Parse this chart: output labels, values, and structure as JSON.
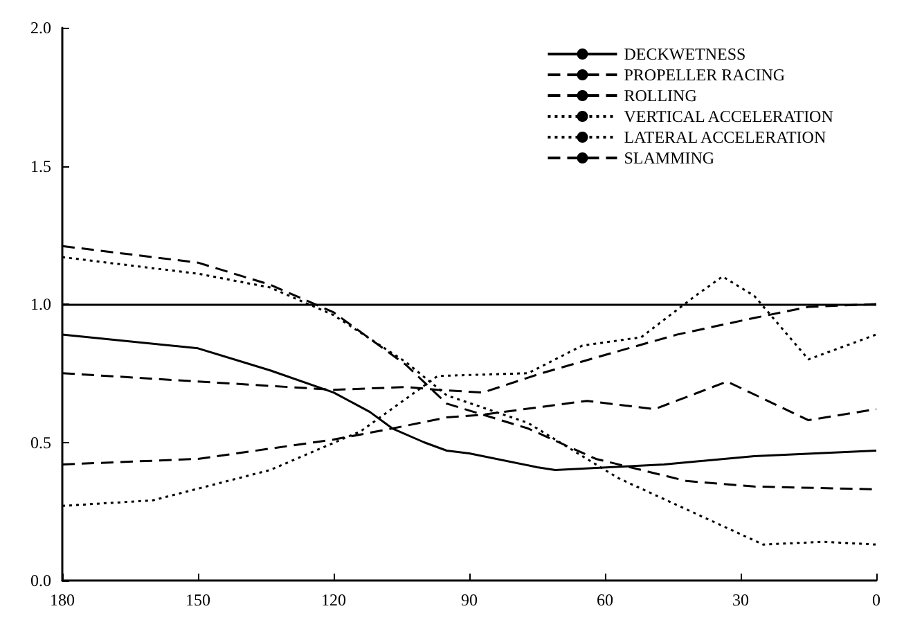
{
  "chart_data": {
    "type": "line",
    "xlim": [
      180,
      0
    ],
    "ylim": [
      0,
      2
    ],
    "xticks": [
      180,
      150,
      120,
      90,
      60,
      30,
      0
    ],
    "yticks": [
      {
        "value": 0,
        "label": "0.0"
      },
      {
        "value": 0.5,
        "label": "0.5"
      },
      {
        "value": 1,
        "label": "1.0"
      },
      {
        "value": 1.5,
        "label": "1.5"
      },
      {
        "value": 2,
        "label": "2.0"
      }
    ],
    "grid": false,
    "legend": "top right",
    "marker": "none",
    "ref_lines": [
      {
        "axis": "y",
        "value": 1.0,
        "color": "#000000",
        "line_style": "solid"
      }
    ],
    "series": [
      {
        "name": "DECKWETNESS",
        "color": "#000000",
        "line_style": "solid",
        "x": [
          180,
          150,
          134,
          120,
          112,
          107,
          100,
          95,
          90,
          75,
          71,
          47,
          27,
          0
        ],
        "values": [
          0.89,
          0.84,
          0.76,
          0.68,
          0.61,
          0.55,
          0.5,
          0.47,
          0.46,
          0.41,
          0.4,
          0.42,
          0.45,
          0.47
        ]
      },
      {
        "name": "PROPELLER RACING",
        "color": "#000000",
        "line_style": "dashed",
        "x": [
          180,
          150,
          120,
          104,
          97,
          87,
          74,
          57,
          44,
          27,
          15,
          0
        ],
        "values": [
          0.75,
          0.72,
          0.69,
          0.7,
          0.69,
          0.68,
          0.75,
          0.83,
          0.89,
          0.95,
          0.99,
          1.0
        ]
      },
      {
        "name": "ROLLING",
        "color": "#000000",
        "line_style": "dashed",
        "x": [
          180,
          150,
          120,
          107,
          95,
          87,
          64,
          49,
          33,
          15,
          0
        ],
        "values": [
          0.42,
          0.44,
          0.51,
          0.55,
          0.59,
          0.6,
          0.65,
          0.62,
          0.72,
          0.58,
          0.62
        ]
      },
      {
        "name": "VERTICAL ACCELERATION",
        "color": "#000000",
        "line_style": "dotted",
        "x": [
          180,
          150,
          134,
          120,
          104,
          95,
          77,
          57,
          37,
          25,
          12,
          0
        ],
        "values": [
          1.17,
          1.11,
          1.06,
          0.96,
          0.79,
          0.67,
          0.57,
          0.37,
          0.22,
          0.13,
          0.14,
          0.13
        ]
      },
      {
        "name": "LATERAL ACCELERATION",
        "color": "#000000",
        "line_style": "dotted",
        "x": [
          180,
          160,
          134,
          114,
          97,
          77,
          65,
          52,
          40,
          34,
          27,
          15,
          0
        ],
        "values": [
          0.27,
          0.29,
          0.4,
          0.54,
          0.74,
          0.75,
          0.85,
          0.88,
          1.03,
          1.1,
          1.03,
          0.8,
          0.89
        ]
      },
      {
        "name": "SLAMMING",
        "color": "#000000",
        "line_style": "dashed",
        "x": [
          180,
          150,
          134,
          120,
          104,
          95,
          77,
          62,
          42,
          27,
          0
        ],
        "values": [
          1.21,
          1.15,
          1.07,
          0.97,
          0.78,
          0.64,
          0.55,
          0.44,
          0.36,
          0.34,
          0.33
        ]
      }
    ]
  }
}
